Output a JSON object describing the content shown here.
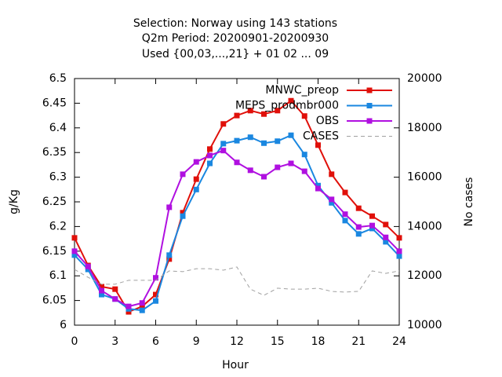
{
  "chart_data": {
    "type": "line",
    "title": [
      "Selection: Norway using   143 stations",
      "Q2m   Period: 20200901-20200930",
      "Used {00,03,...,21} + 01 02 ... 09"
    ],
    "x_label": "Hour",
    "y_label": "g/Kg",
    "y2_label": "No cases",
    "x": [
      0,
      1,
      2,
      3,
      4,
      5,
      6,
      7,
      8,
      9,
      10,
      11,
      12,
      13,
      14,
      15,
      16,
      17,
      18,
      19,
      20,
      21,
      22,
      23,
      24
    ],
    "xlim": [
      0,
      24
    ],
    "xticks": [
      0,
      3,
      6,
      9,
      12,
      15,
      18,
      21,
      24
    ],
    "ylim": [
      6,
      6.5
    ],
    "yticks": [
      6,
      6.05,
      6.1,
      6.15,
      6.2,
      6.25,
      6.3,
      6.35,
      6.4,
      6.45,
      6.5
    ],
    "y2lim": [
      10000,
      20000
    ],
    "y2ticks": [
      10000,
      12000,
      14000,
      16000,
      18000,
      20000
    ],
    "legend": "top-right",
    "grid": false,
    "series": [
      {
        "name": "MNWC_preop",
        "color": "#e0100a",
        "marker": true,
        "values": [
          6.177,
          6.121,
          6.078,
          6.073,
          6.027,
          6.038,
          6.062,
          6.134,
          6.228,
          6.296,
          6.357,
          6.408,
          6.425,
          6.435,
          6.428,
          6.435,
          6.455,
          6.424,
          6.365,
          6.306,
          6.269,
          6.237,
          6.221,
          6.204,
          6.177
        ]
      },
      {
        "name": "MEPS_prodmbr000",
        "color": "#1a87e0",
        "marker": true,
        "values": [
          6.142,
          6.113,
          6.062,
          6.053,
          6.033,
          6.03,
          6.049,
          6.142,
          6.221,
          6.275,
          6.328,
          6.368,
          6.374,
          6.381,
          6.369,
          6.373,
          6.385,
          6.346,
          6.283,
          6.248,
          6.212,
          6.185,
          6.196,
          6.169,
          6.14
        ]
      },
      {
        "name": "OBS",
        "color": "#b010e0",
        "marker": true,
        "values": [
          6.15,
          6.119,
          6.07,
          6.053,
          6.038,
          6.045,
          6.096,
          6.239,
          6.306,
          6.331,
          6.344,
          6.354,
          6.33,
          6.314,
          6.301,
          6.32,
          6.328,
          6.312,
          6.277,
          6.255,
          6.225,
          6.199,
          6.202,
          6.178,
          6.15
        ]
      },
      {
        "name": "CASES",
        "color": "#a0a0a0",
        "marker": false,
        "dashed": true,
        "axis": "y2",
        "values": [
          12260,
          11940,
          11660,
          11660,
          11820,
          11820,
          11820,
          12200,
          12170,
          12290,
          12290,
          12230,
          12360,
          11460,
          11210,
          11500,
          11460,
          11460,
          11500,
          11370,
          11340,
          11370,
          12200,
          12100,
          12200
        ]
      }
    ]
  }
}
